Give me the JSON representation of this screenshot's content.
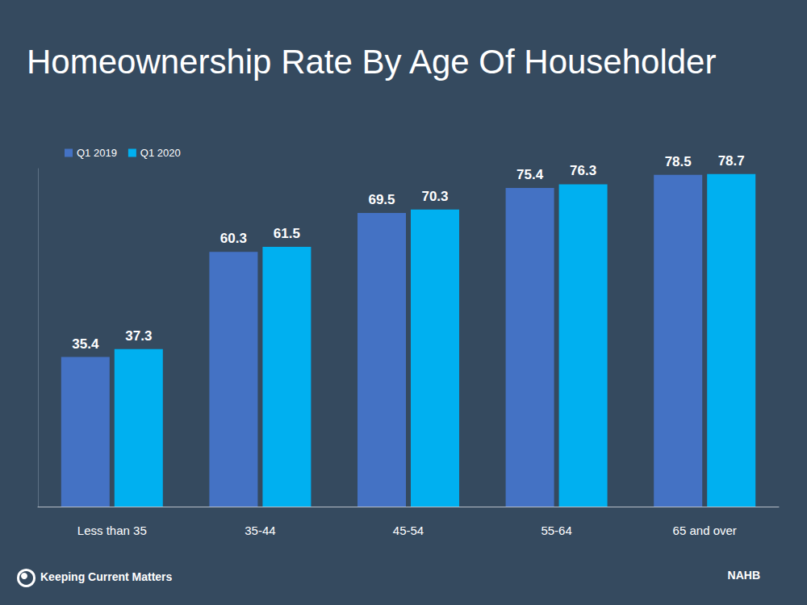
{
  "chart_data": {
    "type": "bar",
    "title": "Homeownership Rate By Age Of Householder",
    "categories": [
      "Less than 35",
      "35-44",
      "45-54",
      "55-64",
      "65 and over"
    ],
    "series": [
      {
        "name": "Q1 2019",
        "color": "#4472c4",
        "values": [
          35.4,
          60.3,
          69.5,
          75.4,
          78.5
        ]
      },
      {
        "name": "Q1 2020",
        "color": "#00b0f0",
        "values": [
          37.3,
          61.5,
          70.3,
          76.3,
          78.7
        ]
      }
    ],
    "ylim": [
      0,
      80
    ],
    "grid": false,
    "legend": "top-left",
    "data_labels": true,
    "tick_labels": "x",
    "source": "NAHB",
    "branding": "Keeping Current Matters"
  }
}
